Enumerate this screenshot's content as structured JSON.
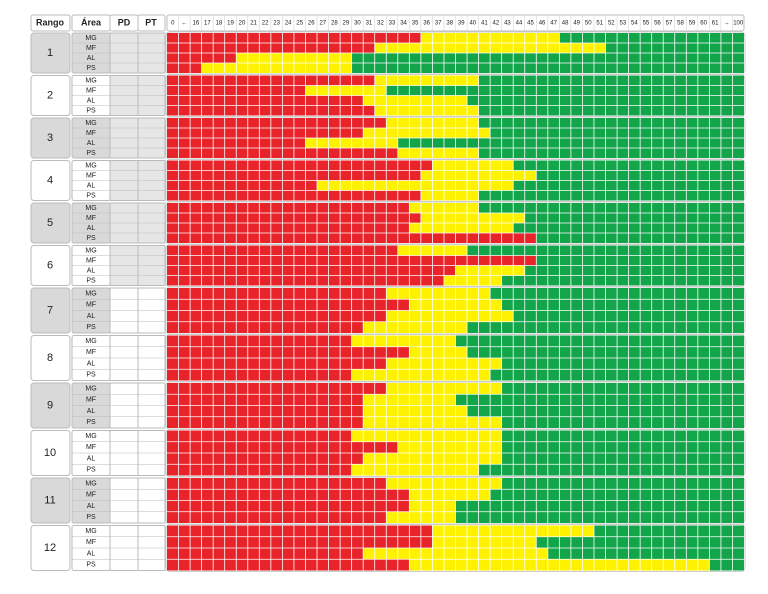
{
  "header": {
    "columns": [
      "Rango",
      "Área",
      "PD",
      "PT"
    ],
    "scale": [
      0,
      "←",
      16,
      17,
      18,
      19,
      20,
      21,
      22,
      23,
      24,
      25,
      26,
      27,
      28,
      29,
      30,
      31,
      32,
      33,
      34,
      35,
      36,
      37,
      38,
      39,
      40,
      41,
      42,
      43,
      44,
      45,
      46,
      47,
      48,
      49,
      50,
      51,
      52,
      53,
      54,
      55,
      56,
      57,
      58,
      59,
      60,
      61,
      "→",
      100
    ]
  },
  "groups": [
    {
      "rango": 1,
      "rows": [
        {
          "area": "MG",
          "yellow_from": 36,
          "green_from": 48
        },
        {
          "area": "MF",
          "yellow_from": 32,
          "green_from": 52
        },
        {
          "area": "AL",
          "yellow_from": 20,
          "green_from": 30
        },
        {
          "area": "PS",
          "yellow_from": 17,
          "green_from": 30
        }
      ]
    },
    {
      "rango": 2,
      "rows": [
        {
          "area": "MG",
          "yellow_from": 32,
          "green_from": 41
        },
        {
          "area": "MF",
          "yellow_from": 26,
          "green_from": 33
        },
        {
          "area": "AL",
          "yellow_from": 31,
          "green_from": 40
        },
        {
          "area": "PS",
          "yellow_from": 32,
          "green_from": 41
        }
      ]
    },
    {
      "rango": 3,
      "rows": [
        {
          "area": "MG",
          "yellow_from": 33,
          "green_from": 41
        },
        {
          "area": "MF",
          "yellow_from": 31,
          "green_from": 42
        },
        {
          "area": "AL",
          "yellow_from": 26,
          "green_from": 34
        },
        {
          "area": "PS",
          "yellow_from": 34,
          "green_from": 41
        }
      ]
    },
    {
      "rango": 4,
      "rows": [
        {
          "area": "MG",
          "yellow_from": 37,
          "green_from": 44
        },
        {
          "area": "MF",
          "yellow_from": 36,
          "green_from": 46
        },
        {
          "area": "AL",
          "yellow_from": 27,
          "green_from": 44
        },
        {
          "area": "PS",
          "yellow_from": 36,
          "green_from": 41
        }
      ]
    },
    {
      "rango": 5,
      "rows": [
        {
          "area": "MG",
          "yellow_from": 35,
          "green_from": 41
        },
        {
          "area": "MF",
          "yellow_from": 36,
          "green_from": 45
        },
        {
          "area": "AL",
          "yellow_from": 35,
          "green_from": 44
        },
        {
          "area": "PS",
          "yellow_from": 46,
          "green_from": 46
        }
      ]
    },
    {
      "rango": 6,
      "rows": [
        {
          "area": "MG",
          "yellow_from": 34,
          "green_from": 40
        },
        {
          "area": "MF",
          "yellow_from": 46,
          "green_from": 46
        },
        {
          "area": "AL",
          "yellow_from": 39,
          "green_from": 45
        },
        {
          "area": "PS",
          "yellow_from": 38,
          "green_from": 43
        }
      ]
    },
    {
      "rango": 7,
      "rows": [
        {
          "area": "MG",
          "yellow_from": 33,
          "green_from": 42
        },
        {
          "area": "MF",
          "yellow_from": 35,
          "green_from": 43
        },
        {
          "area": "AL",
          "yellow_from": 33,
          "green_from": 44
        },
        {
          "area": "PS",
          "yellow_from": 31,
          "green_from": 40
        }
      ]
    },
    {
      "rango": 8,
      "rows": [
        {
          "area": "MG",
          "yellow_from": 30,
          "green_from": 39
        },
        {
          "area": "MF",
          "yellow_from": 35,
          "green_from": 40
        },
        {
          "area": "AL",
          "yellow_from": 33,
          "green_from": 43
        },
        {
          "area": "PS",
          "yellow_from": 30,
          "green_from": 42
        }
      ]
    },
    {
      "rango": 9,
      "rows": [
        {
          "area": "MG",
          "yellow_from": 33,
          "green_from": 43
        },
        {
          "area": "MF",
          "yellow_from": 31,
          "green_from": 39
        },
        {
          "area": "AL",
          "yellow_from": 31,
          "green_from": 40
        },
        {
          "area": "PS",
          "yellow_from": 31,
          "green_from": 43
        }
      ]
    },
    {
      "rango": 10,
      "rows": [
        {
          "area": "MG",
          "yellow_from": 30,
          "green_from": 43
        },
        {
          "area": "MF",
          "yellow_from": 34,
          "green_from": 43
        },
        {
          "area": "AL",
          "yellow_from": 31,
          "green_from": 43
        },
        {
          "area": "PS",
          "yellow_from": 30,
          "green_from": 41
        }
      ]
    },
    {
      "rango": 11,
      "rows": [
        {
          "area": "MG",
          "yellow_from": 33,
          "green_from": 43
        },
        {
          "area": "MF",
          "yellow_from": 35,
          "green_from": 42
        },
        {
          "area": "AL",
          "yellow_from": 35,
          "green_from": 39
        },
        {
          "area": "PS",
          "yellow_from": 33,
          "green_from": 39
        }
      ]
    },
    {
      "rango": 12,
      "rows": [
        {
          "area": "MG",
          "yellow_from": 37,
          "green_from": 51
        },
        {
          "area": "MF",
          "yellow_from": 37,
          "green_from": 46
        },
        {
          "area": "AL",
          "yellow_from": 31,
          "green_from": 47
        },
        {
          "area": "PS",
          "yellow_from": 35,
          "green_from": 61
        }
      ]
    }
  ]
}
